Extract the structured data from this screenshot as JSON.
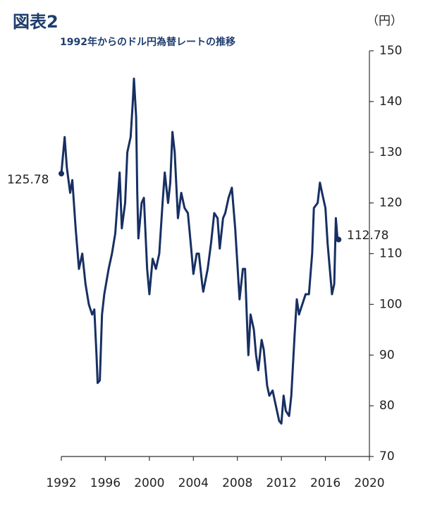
{
  "chart_data": {
    "type": "line",
    "title": "図表2",
    "subtitle": "1992年からのドル円為替レートの推移",
    "y_label": "（円）",
    "annotations": [
      "125.78",
      "112.78"
    ],
    "color": "#172f63",
    "x": [
      1992.0,
      1992.3,
      1992.5,
      1992.8,
      1993.0,
      1993.3,
      1993.6,
      1993.9,
      1994.2,
      1994.5,
      1994.8,
      1995.0,
      1995.2,
      1995.3,
      1995.5,
      1995.7,
      1995.9,
      1996.3,
      1996.6,
      1996.9,
      1997.2,
      1997.3,
      1997.5,
      1997.8,
      1998.0,
      1998.3,
      1998.5,
      1998.6,
      1998.8,
      1998.9,
      1999.0,
      1999.3,
      1999.5,
      1999.8,
      2000.0,
      2000.3,
      2000.6,
      2000.9,
      2001.2,
      2001.4,
      2001.7,
      2001.9,
      2002.1,
      2002.3,
      2002.6,
      2002.9,
      2003.2,
      2003.5,
      2003.8,
      2004.0,
      2004.3,
      2004.5,
      2004.8,
      2004.9,
      2005.3,
      2005.6,
      2005.9,
      2006.2,
      2006.4,
      2006.7,
      2006.9,
      2007.2,
      2007.5,
      2007.8,
      2008.0,
      2008.2,
      2008.5,
      2008.7,
      2008.9,
      2009.0,
      2009.2,
      2009.5,
      2009.7,
      2009.9,
      2010.2,
      2010.4,
      2010.7,
      2010.9,
      2011.2,
      2011.5,
      2011.8,
      2012.0,
      2012.2,
      2012.4,
      2012.7,
      2012.9,
      2013.2,
      2013.4,
      2013.6,
      2013.9,
      2014.2,
      2014.5,
      2014.8,
      2014.95,
      2015.3,
      2015.5,
      2015.8,
      2016.0,
      2016.2,
      2016.4,
      2016.6,
      2016.8,
      2016.95,
      2017.1,
      2017.2
    ],
    "values": [
      125.78,
      133,
      127,
      122,
      124.5,
      115,
      107,
      110,
      104,
      100,
      98,
      99,
      90,
      84.5,
      85,
      98,
      102,
      107,
      110,
      114,
      123,
      126,
      115,
      120,
      130,
      133,
      140,
      144.5,
      137,
      122,
      113,
      120,
      121,
      107,
      102,
      109,
      107,
      110,
      120,
      126,
      120,
      124,
      134,
      130,
      117,
      122,
      119,
      118,
      111,
      106,
      110,
      110,
      104,
      102.5,
      107,
      112,
      118,
      117,
      111,
      117,
      118,
      121,
      123,
      115,
      108,
      101,
      107,
      107,
      95,
      90,
      98,
      95,
      90,
      87,
      93,
      91,
      84,
      82,
      83,
      80,
      77,
      76.5,
      82,
      79,
      78,
      82,
      94,
      101,
      98,
      100,
      102,
      102,
      110,
      119,
      120,
      124,
      121,
      119,
      112,
      107,
      102,
      104,
      117,
      113,
      112.78
    ],
    "xlim": [
      1992,
      2020
    ],
    "xticks": [
      1992,
      1996,
      2000,
      2004,
      2008,
      2012,
      2016,
      2020
    ],
    "ylim": [
      70,
      150
    ],
    "yticks": [
      70,
      80,
      90,
      100,
      110,
      120,
      130,
      140,
      150
    ]
  }
}
